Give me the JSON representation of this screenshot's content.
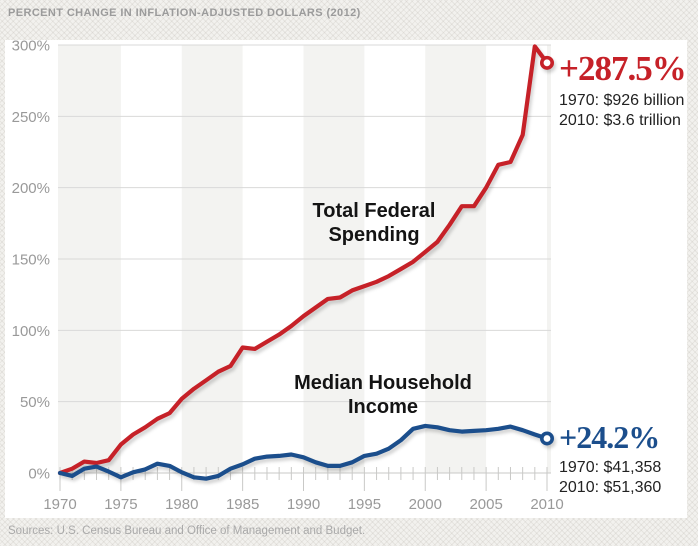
{
  "title": "PERCENT CHANGE IN INFLATION-ADJUSTED DOLLARS (2012)",
  "source_note": "Sources: U.S. Census Bureau and Office of Management and Budget.",
  "colors": {
    "spending": "#c62128",
    "income": "#1b4e8c",
    "grid_line": "#d9d9d8",
    "axis_line": "#c9c9c7",
    "band": "#f3f3f1",
    "axis_text": "#999999",
    "title_text": "#9b9b9b",
    "annotation_text": "#222222"
  },
  "series_labels": {
    "spending": {
      "line1": "Total Federal",
      "line2": "Spending"
    },
    "income": {
      "line1": "Median Household",
      "line2": "Income"
    }
  },
  "annotations": {
    "spending": {
      "pct": "+287.5%",
      "line1": "1970: $926 billion",
      "line2": "2010: $3.6 trillion"
    },
    "income": {
      "pct": "+24.2%",
      "line1": "1970: $41,358",
      "line2": "2010: $51,360"
    }
  },
  "chart_data": {
    "type": "line",
    "title": "PERCENT CHANGE IN INFLATION-ADJUSTED DOLLARS (2012)",
    "x": [
      1970,
      1971,
      1972,
      1973,
      1974,
      1975,
      1976,
      1977,
      1978,
      1979,
      1980,
      1981,
      1982,
      1983,
      1984,
      1985,
      1986,
      1987,
      1988,
      1989,
      1990,
      1991,
      1992,
      1993,
      1994,
      1995,
      1996,
      1997,
      1998,
      1999,
      2000,
      2001,
      2002,
      2003,
      2004,
      2005,
      2006,
      2007,
      2008,
      2009,
      2010
    ],
    "series": [
      {
        "name": "Total Federal Spending",
        "color": "#c62128",
        "values": [
          0,
          3,
          8,
          7,
          9,
          20,
          27,
          32,
          38,
          42,
          52,
          59,
          65,
          71,
          75,
          88,
          87,
          92,
          97,
          103,
          110,
          116,
          122,
          123,
          128,
          131,
          134,
          138,
          143,
          148,
          155,
          162,
          174,
          187,
          187,
          200,
          216,
          218,
          237,
          299,
          287.5
        ]
      },
      {
        "name": "Median Household Income",
        "color": "#1b4e8c",
        "values": [
          0,
          -2,
          3,
          4.5,
          1,
          -3,
          0.5,
          2.5,
          6.5,
          5,
          0.5,
          -3,
          -4,
          -2,
          3,
          6,
          10,
          11.5,
          12,
          13,
          11,
          7.5,
          5,
          5,
          7.5,
          12,
          13.5,
          17,
          23,
          31,
          33,
          32,
          30,
          29,
          29.5,
          30,
          31,
          32.5,
          30,
          27,
          24.2
        ]
      }
    ],
    "ylim": [
      0,
      300
    ],
    "ytick_values": [
      0,
      50,
      100,
      150,
      200,
      250,
      300
    ],
    "ytick_labels": [
      "0%",
      "50%",
      "100%",
      "150%",
      "200%",
      "250%",
      "300%"
    ],
    "xtick_major": [
      1970,
      1975,
      1980,
      1985,
      1990,
      1995,
      2000,
      2005,
      2010
    ],
    "grid": "horizontal",
    "background_bands": "alternating 5-year vertical bands, gray starting 1970-1975",
    "legend_position": "inline-labels",
    "endpoint_markers": "open circles at 2010"
  }
}
